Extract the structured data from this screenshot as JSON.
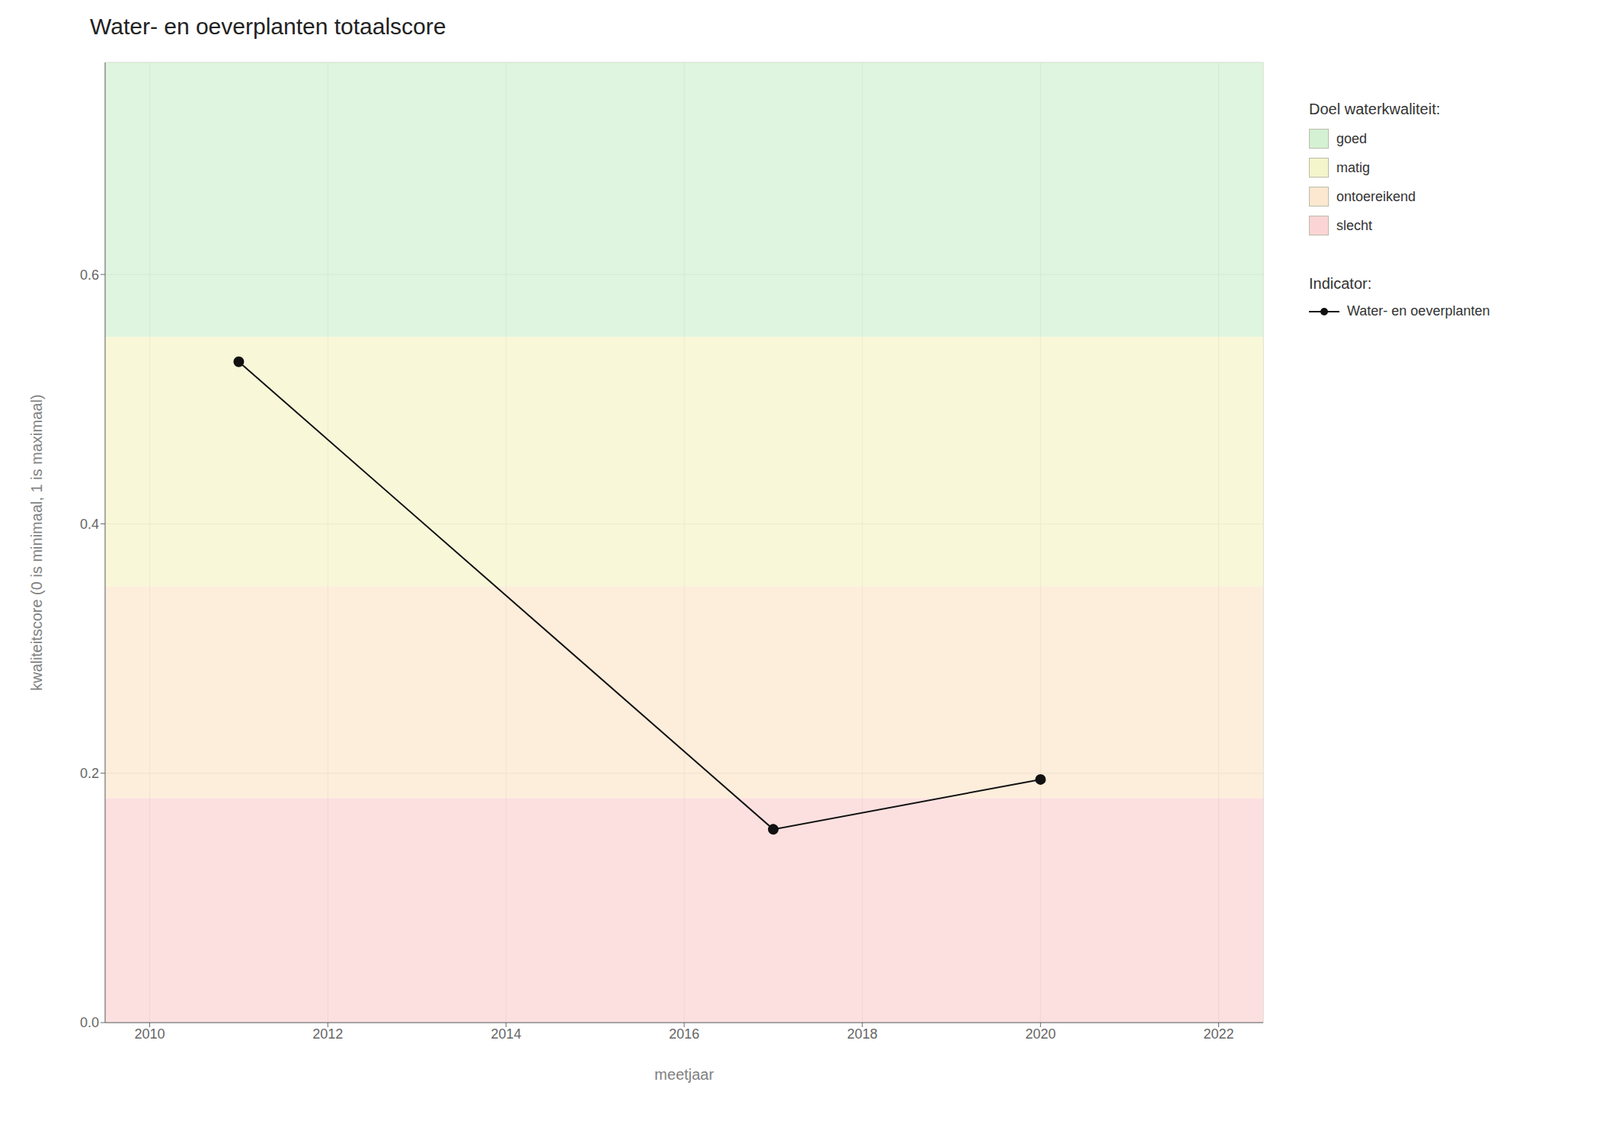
{
  "chart_data": {
    "type": "line",
    "title": "Water- en oeverplanten totaalscore",
    "xlabel": "meetjaar",
    "ylabel": "kwaliteitscore (0 is minimaal, 1 is maximaal)",
    "x": [
      2011,
      2017,
      2020
    ],
    "series": [
      {
        "name": "Water- en oeverplanten",
        "color": "#111111",
        "marker": "circle",
        "values": [
          0.53,
          0.155,
          0.195
        ]
      }
    ],
    "xlim": [
      2009.5,
      2022.5
    ],
    "ylim": [
      0.0,
      0.77
    ],
    "xticks": [
      2010,
      2012,
      2014,
      2016,
      2018,
      2020,
      2022
    ],
    "yticks": [
      {
        "value": 0.0,
        "label": "0.0"
      },
      0.2,
      0.4,
      0.6
    ],
    "bands": [
      {
        "label": "goed",
        "ymin": 0.55,
        "ymax": 0.77,
        "color": "#d4f1d4"
      },
      {
        "label": "matig",
        "ymin": 0.35,
        "ymax": 0.55,
        "color": "#f5f5cc"
      },
      {
        "label": "ontoereikend",
        "ymin": 0.18,
        "ymax": 0.35,
        "color": "#fce8d0"
      },
      {
        "label": "slecht",
        "ymin": 0.0,
        "ymax": 0.18,
        "color": "#fbd5d5"
      }
    ],
    "bands_title": "Doel waterkwaliteit:",
    "series_title": "Indicator:",
    "grid": true,
    "legend": "right"
  }
}
